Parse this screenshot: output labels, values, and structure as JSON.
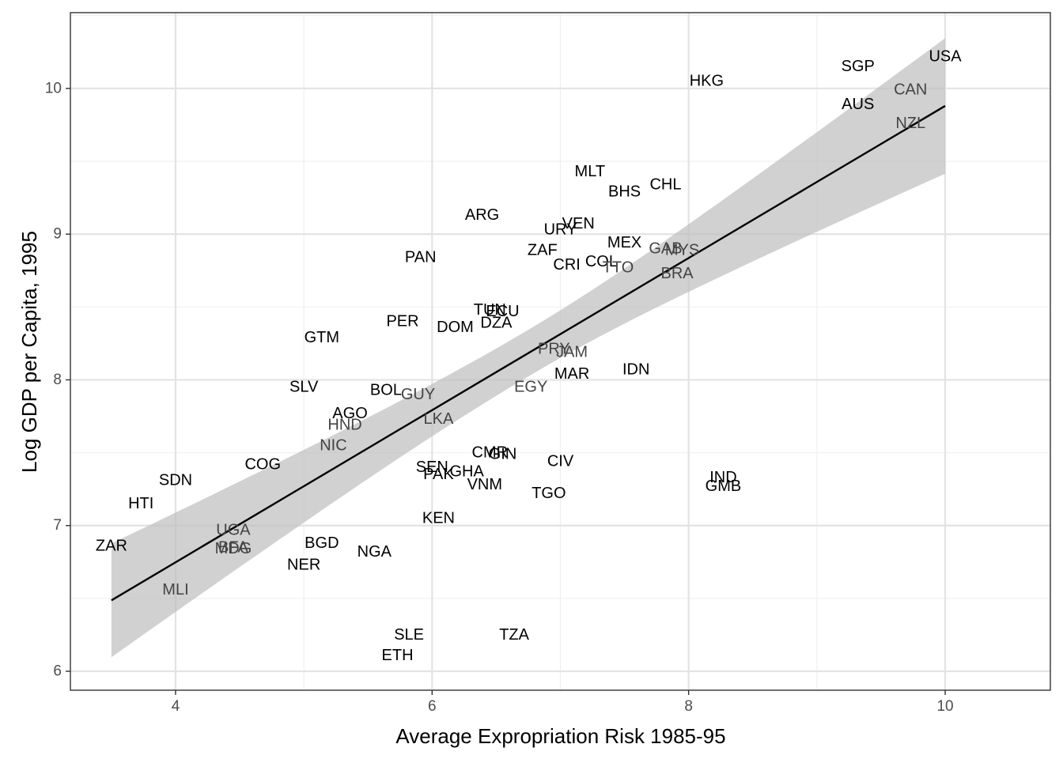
{
  "chart_data": {
    "type": "scatter",
    "title": "",
    "xlabel": "Average Expropriation Risk 1985-95",
    "ylabel": "Log GDP per Capita, 1995",
    "xlim": [
      3.18,
      10.82
    ],
    "ylim": [
      5.87,
      10.52
    ],
    "x_ticks": [
      4,
      6,
      8,
      10
    ],
    "y_ticks": [
      6,
      7,
      8,
      9,
      10
    ],
    "x_tick_labels": [
      "4",
      "6",
      "8",
      "10"
    ],
    "y_tick_labels": [
      "6",
      "7",
      "8",
      "9",
      "10"
    ],
    "grid": true,
    "legend": "none",
    "label_colors": {
      "dark": "#000000",
      "mid": "#444444"
    },
    "fit": {
      "x_range": [
        3.5,
        10.0
      ],
      "intercept": 4.66,
      "slope": 0.522,
      "band_lower": [
        6.08,
        9.42
      ],
      "band_upper": [
        6.86,
        10.35
      ]
    },
    "points": [
      {
        "label": "USA",
        "x": 10.0,
        "y": 10.22
      },
      {
        "label": "SGP",
        "x": 9.32,
        "y": 10.15
      },
      {
        "label": "CAN",
        "x": 9.73,
        "y": 9.99
      },
      {
        "label": "AUS",
        "x": 9.32,
        "y": 9.89
      },
      {
        "label": "NZL",
        "x": 9.73,
        "y": 9.76
      },
      {
        "label": "HKG",
        "x": 8.14,
        "y": 10.05
      },
      {
        "label": "MLT",
        "x": 7.23,
        "y": 9.43
      },
      {
        "label": "CHL",
        "x": 7.82,
        "y": 9.34
      },
      {
        "label": "BHS",
        "x": 7.5,
        "y": 9.29
      },
      {
        "label": "ARG",
        "x": 6.39,
        "y": 9.13
      },
      {
        "label": "VEN",
        "x": 7.14,
        "y": 9.07
      },
      {
        "label": "URY",
        "x": 7.0,
        "y": 9.03
      },
      {
        "label": "MEX",
        "x": 7.5,
        "y": 8.94
      },
      {
        "label": "GAB",
        "x": 7.82,
        "y": 8.9
      },
      {
        "label": "MYS",
        "x": 7.95,
        "y": 8.89
      },
      {
        "label": "ZAF",
        "x": 6.86,
        "y": 8.89
      },
      {
        "label": "PAN",
        "x": 5.91,
        "y": 8.84
      },
      {
        "label": "COL",
        "x": 7.32,
        "y": 8.81
      },
      {
        "label": "TTO",
        "x": 7.45,
        "y": 8.77
      },
      {
        "label": "CRI",
        "x": 7.05,
        "y": 8.79
      },
      {
        "label": "BRA",
        "x": 7.91,
        "y": 8.73
      },
      {
        "label": "TUN",
        "x": 6.45,
        "y": 8.48
      },
      {
        "label": "ECU",
        "x": 6.55,
        "y": 8.47
      },
      {
        "label": "DZA",
        "x": 6.5,
        "y": 8.39
      },
      {
        "label": "PER",
        "x": 5.77,
        "y": 8.4
      },
      {
        "label": "DOM",
        "x": 6.18,
        "y": 8.36
      },
      {
        "label": "GTM",
        "x": 5.14,
        "y": 8.29
      },
      {
        "label": "PRY",
        "x": 6.95,
        "y": 8.21
      },
      {
        "label": "JAM",
        "x": 7.09,
        "y": 8.19
      },
      {
        "label": "MAR",
        "x": 7.09,
        "y": 8.04
      },
      {
        "label": "IDN",
        "x": 7.59,
        "y": 8.07
      },
      {
        "label": "SLV",
        "x": 5.0,
        "y": 7.95
      },
      {
        "label": "BOL",
        "x": 5.64,
        "y": 7.93
      },
      {
        "label": "GUY",
        "x": 5.89,
        "y": 7.9
      },
      {
        "label": "EGY",
        "x": 6.77,
        "y": 7.95
      },
      {
        "label": "AGO",
        "x": 5.36,
        "y": 7.77
      },
      {
        "label": "HND",
        "x": 5.32,
        "y": 7.69
      },
      {
        "label": "LKA",
        "x": 6.05,
        "y": 7.73
      },
      {
        "label": "NIC",
        "x": 5.23,
        "y": 7.55
      },
      {
        "label": "COG",
        "x": 4.68,
        "y": 7.42
      },
      {
        "label": "CMR",
        "x": 6.45,
        "y": 7.5
      },
      {
        "label": "GIN",
        "x": 6.55,
        "y": 7.49
      },
      {
        "label": "CIV",
        "x": 7.0,
        "y": 7.44
      },
      {
        "label": "SEN",
        "x": 6.0,
        "y": 7.4
      },
      {
        "label": "PAK",
        "x": 6.05,
        "y": 7.35
      },
      {
        "label": "GHA",
        "x": 6.27,
        "y": 7.37
      },
      {
        "label": "VNM",
        "x": 6.41,
        "y": 7.28
      },
      {
        "label": "TGO",
        "x": 6.91,
        "y": 7.22
      },
      {
        "label": "IND",
        "x": 8.27,
        "y": 7.33
      },
      {
        "label": "GMB",
        "x": 8.27,
        "y": 7.27
      },
      {
        "label": "SDN",
        "x": 4.0,
        "y": 7.31
      },
      {
        "label": "HTI",
        "x": 3.73,
        "y": 7.15
      },
      {
        "label": "KEN",
        "x": 6.05,
        "y": 7.05
      },
      {
        "label": "UGA",
        "x": 4.45,
        "y": 6.97
      },
      {
        "label": "ZAR",
        "x": 3.5,
        "y": 6.86
      },
      {
        "label": "BFA",
        "x": 4.45,
        "y": 6.85
      },
      {
        "label": "MDG",
        "x": 4.45,
        "y": 6.84
      },
      {
        "label": "BGD",
        "x": 5.14,
        "y": 6.88
      },
      {
        "label": "NGA",
        "x": 5.55,
        "y": 6.82
      },
      {
        "label": "NER",
        "x": 5.0,
        "y": 6.73
      },
      {
        "label": "MLI",
        "x": 4.0,
        "y": 6.56
      },
      {
        "label": "SLE",
        "x": 5.82,
        "y": 6.25
      },
      {
        "label": "TZA",
        "x": 6.64,
        "y": 6.25
      },
      {
        "label": "ETH",
        "x": 5.73,
        "y": 6.11
      }
    ]
  }
}
